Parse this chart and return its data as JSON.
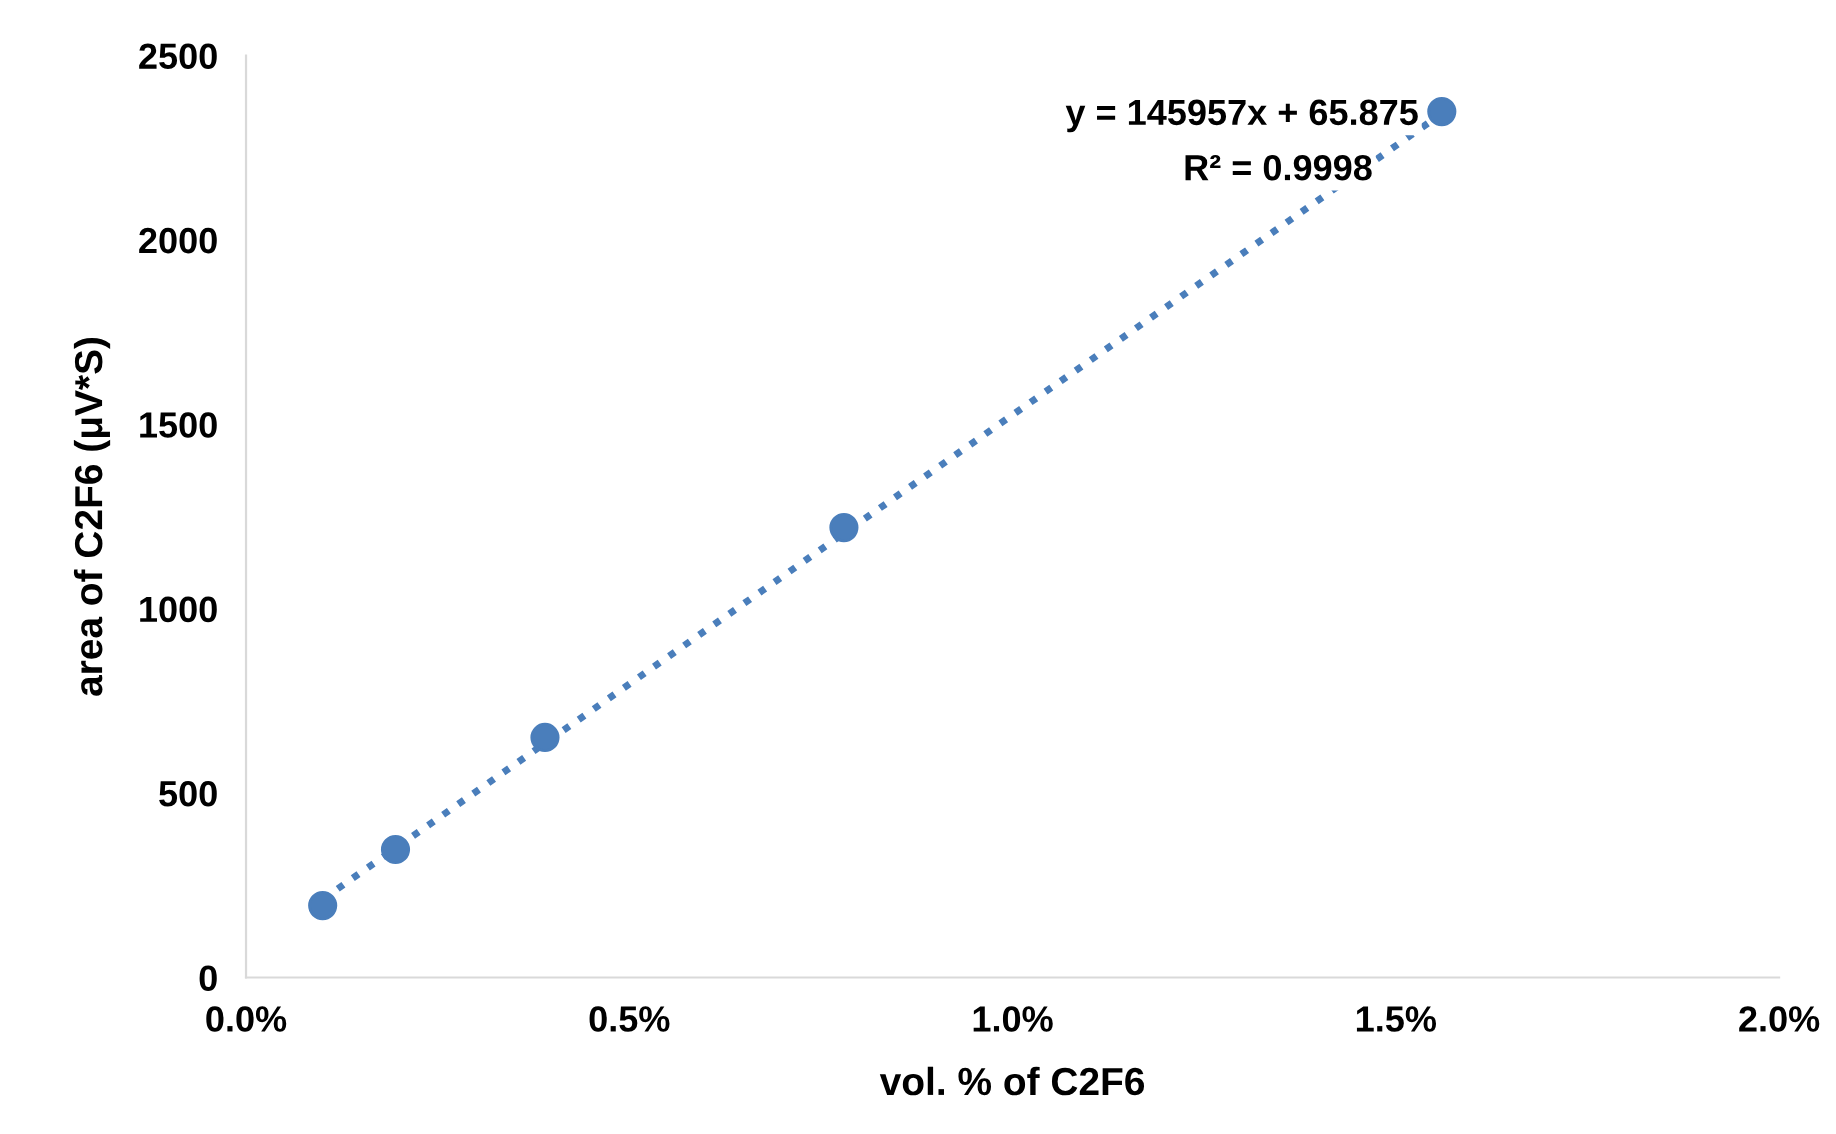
{
  "chart_data": {
    "type": "scatter",
    "xlabel": "vol. % of C2F6",
    "ylabel": "area of C2F6 (μV*S)",
    "series": [
      {
        "color": "#4a7ebb",
        "marker": "circle",
        "x": [
          0.001,
          0.00195,
          0.0039,
          0.0078,
          0.0156
        ],
        "values": [
          195,
          347,
          651,
          1220,
          2348
        ]
      },
      {
        "type": "line",
        "color": "#4a7ebb",
        "line_style": "dotted",
        "marker": "none",
        "x": [
          0.001,
          0.0156
        ],
        "values": [
          212,
          2343
        ]
      }
    ],
    "annotations": [
      "y = 145957x + 65.875",
      "R² = 0.9998"
    ],
    "xlim": [
      0,
      0.02
    ],
    "ylim": [
      0,
      2500
    ],
    "xticks": [
      {
        "value": 0,
        "label": "0.0%"
      },
      {
        "value": 0.005,
        "label": "0.5%"
      },
      {
        "value": 0.01,
        "label": "1.0%"
      },
      {
        "value": 0.015,
        "label": "1.5%"
      },
      {
        "value": 0.02,
        "label": "2.0%"
      }
    ],
    "yticks": [
      0,
      500,
      1000,
      1500,
      2000,
      2500
    ],
    "grid": false,
    "legend": false
  }
}
